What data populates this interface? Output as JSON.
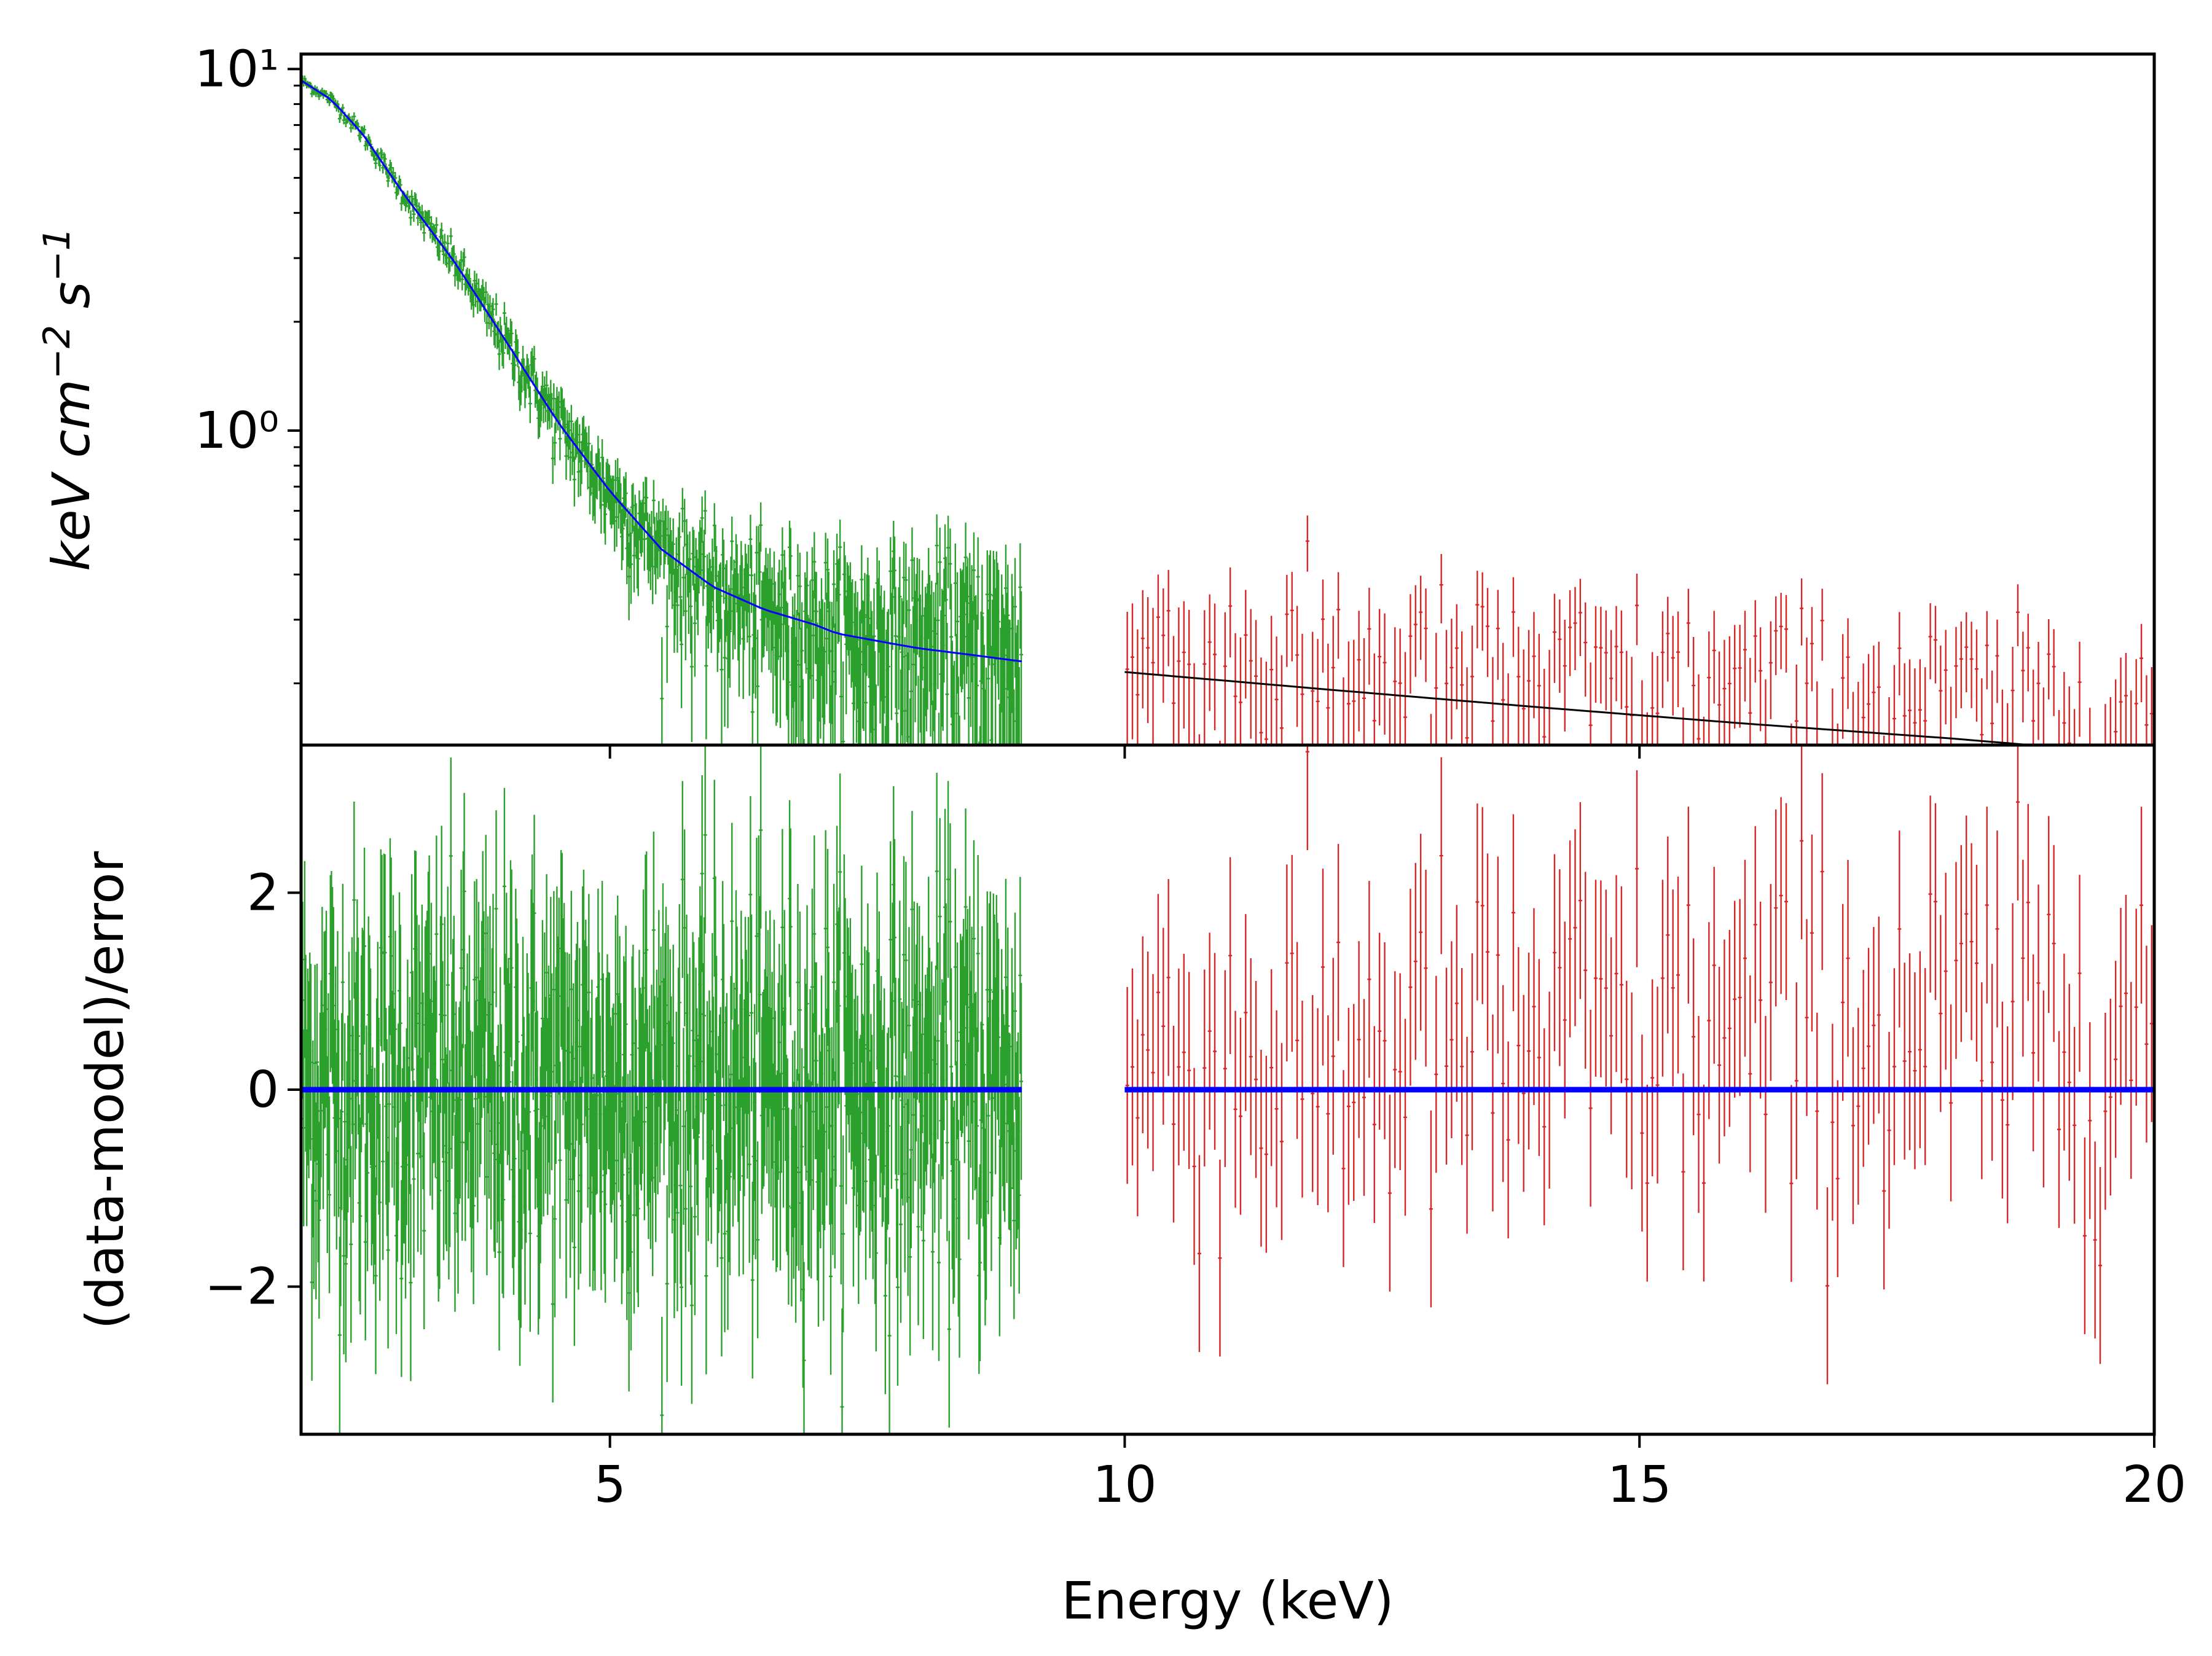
{
  "chart_data": {
    "type": "scatter",
    "shared_x": {
      "label": "Energy (keV)",
      "range": [
        2.0,
        20.0
      ],
      "ticks": [
        5,
        10,
        15,
        20
      ],
      "tick_labels": [
        "5",
        "10",
        "15",
        "20"
      ]
    },
    "panels": [
      {
        "id": "spectrum",
        "ylabel": "keV cm⁻² s⁻¹",
        "yscale": "log",
        "ylim": [
          0.135,
          11.0
        ],
        "major_ticks": [
          1,
          10
        ],
        "major_tick_labels": [
          "10⁰",
          "10¹"
        ],
        "series": [
          {
            "name": "data-low",
            "color": "#2ca02c",
            "x_range": [
              2.0,
              9.0
            ],
            "points": 700,
            "description": "spectrum data with error bars"
          },
          {
            "name": "model-low",
            "color": "#0000ff",
            "x": [
              2.0,
              2.3,
              2.6,
              3.0,
              3.5,
              4.0,
              4.5,
              5.0,
              5.5,
              6.0,
              6.5,
              7.0,
              7.2,
              7.5,
              8.0,
              8.5,
              9.0
            ],
            "y": [
              9.3,
              8.2,
              6.6,
              4.5,
              2.9,
              1.75,
              1.05,
              0.68,
              0.47,
              0.37,
              0.32,
              0.29,
              0.275,
              0.265,
              0.25,
              0.24,
              0.23
            ]
          },
          {
            "name": "data-high",
            "color": "#d62728",
            "x_range": [
              10.0,
              20.0
            ],
            "points": 200,
            "description": "spectrum data with error bars"
          },
          {
            "name": "model-high",
            "color": "#000000",
            "x": [
              10.0,
              12.0,
              14.0,
              16.0,
              18.0,
              18.8
            ],
            "y": [
              0.215,
              0.192,
              0.172,
              0.155,
              0.141,
              0.135
            ]
          }
        ]
      },
      {
        "id": "residuals",
        "ylabel": "(data-model)/error",
        "yscale": "linear",
        "ylim": [
          -3.5,
          3.5
        ],
        "ticks": [
          -2,
          0,
          2
        ],
        "tick_labels": [
          "−2",
          "0",
          "2"
        ],
        "series": [
          {
            "name": "resid-low",
            "color": "#2ca02c",
            "x_range": [
              2.0,
              9.0
            ],
            "points": 700
          },
          {
            "name": "resid-high",
            "color": "#d62728",
            "x_range": [
              10.0,
              20.0
            ],
            "points": 200
          },
          {
            "name": "zero-line-low",
            "color": "#0000ff",
            "x": [
              2.0,
              9.0
            ],
            "y": [
              0,
              0
            ]
          },
          {
            "name": "zero-line-high",
            "color": "#0000ff",
            "x": [
              10.0,
              20.0
            ],
            "y": [
              0,
              0
            ]
          }
        ]
      }
    ]
  }
}
